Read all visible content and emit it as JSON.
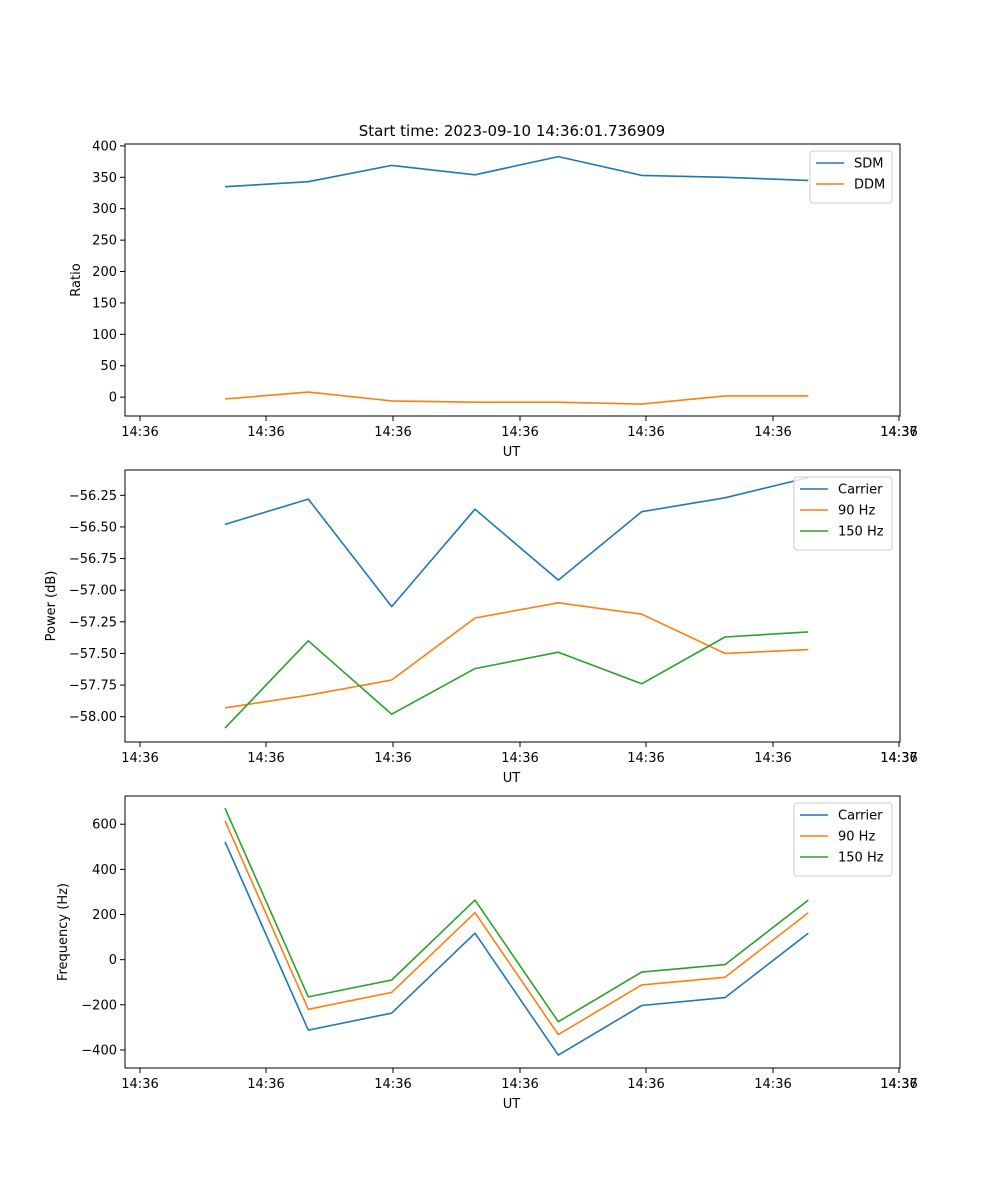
{
  "figure": {
    "title": "Start time: 2023-09-10 14:36:01.736909"
  },
  "chart_data": [
    {
      "type": "line",
      "title": "Start time: 2023-09-10 14:36:01.736909",
      "xlabel": "UT",
      "ylabel": "Ratio",
      "x_ticks": [
        "14:36",
        "14:36",
        "14:36",
        "14:36",
        "14:36",
        "14:36",
        "14:36",
        "14:37"
      ],
      "x": [
        1,
        2,
        3,
        4,
        5,
        6,
        7,
        8
      ],
      "xlim": [
        -0.2,
        9.1
      ],
      "ylim": [
        -30,
        403
      ],
      "y_ticks": [
        0,
        50,
        100,
        150,
        200,
        250,
        300,
        350,
        400
      ],
      "y_tick_labels": [
        "0",
        "50",
        "100",
        "150",
        "200",
        "250",
        "300",
        "350",
        "400"
      ],
      "legend_position": "top-right",
      "series": [
        {
          "name": "SDM",
          "color": "#1f77b4",
          "values": [
            335,
            343,
            369,
            354,
            383,
            353,
            350,
            345
          ]
        },
        {
          "name": "DDM",
          "color": "#ff7f0e",
          "values": [
            -3,
            8,
            -6,
            -8,
            -8,
            -11,
            2,
            2
          ]
        }
      ]
    },
    {
      "type": "line",
      "title": "",
      "xlabel": "UT",
      "ylabel": "Power (dB)",
      "x_ticks": [
        "14:36",
        "14:36",
        "14:36",
        "14:36",
        "14:36",
        "14:36",
        "14:36",
        "14:37"
      ],
      "x": [
        1,
        2,
        3,
        4,
        5,
        6,
        7,
        8
      ],
      "xlim": [
        -0.2,
        9.1
      ],
      "ylim": [
        -58.2,
        -56.05
      ],
      "y_ticks": [
        -58.0,
        -57.75,
        -57.5,
        -57.25,
        -57.0,
        -56.75,
        -56.5,
        -56.25
      ],
      "y_tick_labels": [
        "−58.00",
        "−57.75",
        "−57.50",
        "−57.25",
        "−57.00",
        "−56.75",
        "−56.50",
        "−56.25"
      ],
      "legend_position": "top-right",
      "series": [
        {
          "name": "Carrier",
          "color": "#1f77b4",
          "values": [
            -56.48,
            -56.28,
            -57.13,
            -56.36,
            -56.92,
            -56.38,
            -56.27,
            -56.11
          ]
        },
        {
          "name": "90 Hz",
          "color": "#ff7f0e",
          "values": [
            -57.93,
            -57.83,
            -57.71,
            -57.22,
            -57.1,
            -57.19,
            -57.5,
            -57.47
          ]
        },
        {
          "name": "150 Hz",
          "color": "#2ca02c",
          "values": [
            -58.09,
            -57.4,
            -57.98,
            -57.62,
            -57.49,
            -57.74,
            -57.37,
            -57.33
          ]
        }
      ]
    },
    {
      "type": "line",
      "title": "",
      "xlabel": "UT",
      "ylabel": "Frequency (Hz)",
      "x_ticks": [
        "14:36",
        "14:36",
        "14:36",
        "14:36",
        "14:36",
        "14:36",
        "14:36",
        "14:37"
      ],
      "x": [
        1,
        2,
        3,
        4,
        5,
        6,
        7,
        8
      ],
      "xlim": [
        -0.2,
        9.1
      ],
      "ylim": [
        -480,
        725
      ],
      "y_ticks": [
        -400,
        -200,
        0,
        200,
        400,
        600
      ],
      "y_tick_labels": [
        "−400",
        "−200",
        "0",
        "200",
        "400",
        "600"
      ],
      "legend_position": "top-right",
      "series": [
        {
          "name": "Carrier",
          "color": "#1f77b4",
          "values": [
            522,
            -312,
            -237,
            117,
            -423,
            -203,
            -168,
            117
          ]
        },
        {
          "name": "90 Hz",
          "color": "#ff7f0e",
          "values": [
            615,
            -220,
            -145,
            208,
            -332,
            -112,
            -78,
            208
          ]
        },
        {
          "name": "150 Hz",
          "color": "#2ca02c",
          "values": [
            671,
            -165,
            -90,
            264,
            -275,
            -55,
            -22,
            264
          ]
        }
      ]
    }
  ]
}
